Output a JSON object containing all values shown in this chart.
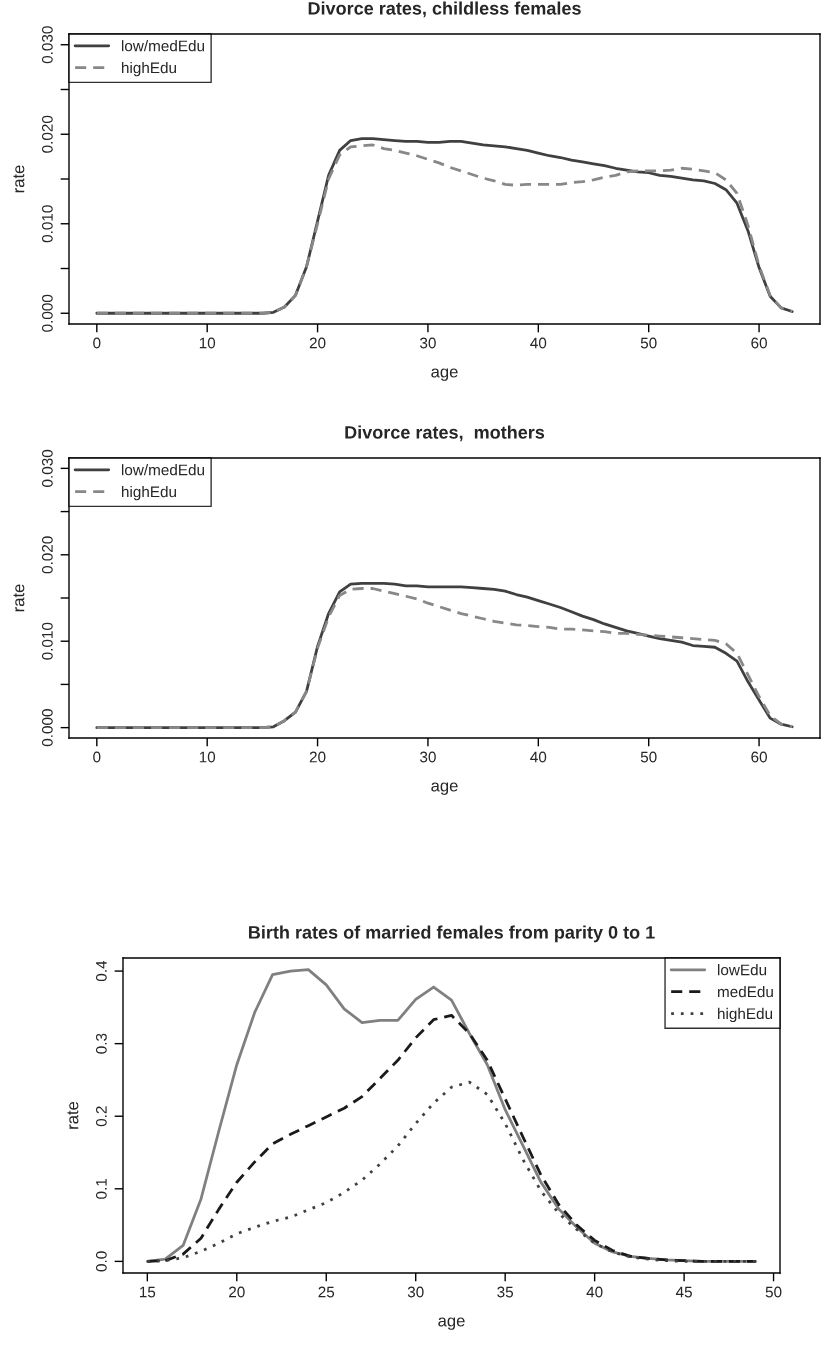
{
  "chart_data": [
    {
      "type": "line",
      "title": "Divorce rates, childless females",
      "xlabel": "age",
      "ylabel": "rate",
      "legend": "top left",
      "x": [
        0,
        1,
        2,
        3,
        4,
        5,
        6,
        7,
        8,
        9,
        10,
        11,
        12,
        13,
        14,
        15,
        16,
        17,
        18,
        19,
        20,
        21,
        22,
        23,
        24,
        25,
        26,
        27,
        28,
        29,
        30,
        31,
        32,
        33,
        34,
        35,
        36,
        37,
        38,
        39,
        40,
        41,
        42,
        43,
        44,
        45,
        46,
        47,
        48,
        49,
        50,
        51,
        52,
        53,
        54,
        55,
        56,
        57,
        58,
        59,
        60,
        61,
        62,
        63
      ],
      "xlim": [
        -2.52,
        65.52
      ],
      "xticks": [
        0,
        10,
        20,
        30,
        40,
        50,
        60
      ],
      "ylim": [
        -0.0012,
        0.0312
      ],
      "yticks": [
        {
          "value": 0,
          "label": "0.000"
        },
        {
          "value": 0.005,
          "label": null
        },
        {
          "value": 0.01,
          "label": "0.010"
        },
        {
          "value": 0.015,
          "label": null
        },
        {
          "value": 0.02,
          "label": "0.020"
        },
        {
          "value": 0.025,
          "label": null
        },
        {
          "value": 0.03,
          "label": "0.030"
        }
      ],
      "series": [
        {
          "name": "low/medEdu",
          "color": "#404040",
          "line_style": "solid",
          "values": [
            0,
            0,
            0,
            0,
            0,
            0,
            0,
            0,
            0,
            0,
            0,
            0,
            0,
            0,
            0,
            0,
            0.0001,
            0.0007,
            0.002,
            0.0052,
            0.0103,
            0.0154,
            0.0182,
            0.0193,
            0.0195,
            0.0195,
            0.0194,
            0.0193,
            0.0192,
            0.0192,
            0.0191,
            0.0191,
            0.0192,
            0.0192,
            0.019,
            0.0188,
            0.0187,
            0.0186,
            0.0184,
            0.0182,
            0.0179,
            0.0176,
            0.0174,
            0.0171,
            0.0169,
            0.0167,
            0.0165,
            0.0162,
            0.016,
            0.0158,
            0.0157,
            0.0154,
            0.0153,
            0.0151,
            0.0149,
            0.0148,
            0.0145,
            0.0138,
            0.0123,
            0.0092,
            0.0051,
            0.0019,
            0.0006,
            0.0002
          ]
        },
        {
          "name": "highEdu",
          "color": "#888888",
          "line_style": "dashed",
          "values": [
            0,
            0,
            0,
            0,
            0,
            0,
            0,
            0,
            0,
            0,
            0,
            0,
            0,
            0,
            0,
            0,
            0.0001,
            0.0007,
            0.002,
            0.0052,
            0.01,
            0.015,
            0.0177,
            0.0186,
            0.0187,
            0.0188,
            0.0184,
            0.0182,
            0.0179,
            0.0176,
            0.0172,
            0.0168,
            0.0163,
            0.0159,
            0.0155,
            0.0151,
            0.0148,
            0.0144,
            0.0143,
            0.0144,
            0.0144,
            0.0144,
            0.0144,
            0.0146,
            0.0147,
            0.0149,
            0.0152,
            0.0154,
            0.0158,
            0.0159,
            0.0159,
            0.0159,
            0.016,
            0.0162,
            0.0161,
            0.0159,
            0.0157,
            0.0149,
            0.0134,
            0.0098,
            0.0053,
            0.002,
            0.0006,
            0.0002
          ]
        }
      ]
    },
    {
      "type": "line",
      "title": "Divorce rates,  mothers",
      "xlabel": "age",
      "ylabel": "rate",
      "legend": "top left",
      "x": [
        0,
        1,
        2,
        3,
        4,
        5,
        6,
        7,
        8,
        9,
        10,
        11,
        12,
        13,
        14,
        15,
        16,
        17,
        18,
        19,
        20,
        21,
        22,
        23,
        24,
        25,
        26,
        27,
        28,
        29,
        30,
        31,
        32,
        33,
        34,
        35,
        36,
        37,
        38,
        39,
        40,
        41,
        42,
        43,
        44,
        45,
        46,
        47,
        48,
        49,
        50,
        51,
        52,
        53,
        54,
        55,
        56,
        57,
        58,
        59,
        60,
        61,
        62,
        63
      ],
      "xlim": [
        -2.52,
        65.52
      ],
      "xticks": [
        0,
        10,
        20,
        30,
        40,
        50,
        60
      ],
      "ylim": [
        -0.0012,
        0.0312
      ],
      "yticks": [
        {
          "value": 0,
          "label": "0.000"
        },
        {
          "value": 0.005,
          "label": null
        },
        {
          "value": 0.01,
          "label": "0.010"
        },
        {
          "value": 0.015,
          "label": null
        },
        {
          "value": 0.02,
          "label": "0.020"
        },
        {
          "value": 0.025,
          "label": null
        },
        {
          "value": 0.03,
          "label": "0.030"
        }
      ],
      "series": [
        {
          "name": "low/medEdu",
          "color": "#404040",
          "line_style": "solid",
          "values": [
            0,
            0,
            0,
            0,
            0,
            0,
            0,
            0,
            0,
            0,
            0,
            0,
            0,
            0,
            0,
            0,
            0.0001,
            0.0008,
            0.0018,
            0.0042,
            0.0094,
            0.0132,
            0.0157,
            0.0166,
            0.0167,
            0.0167,
            0.0167,
            0.0166,
            0.0164,
            0.0164,
            0.0163,
            0.0163,
            0.0163,
            0.0163,
            0.0162,
            0.0161,
            0.016,
            0.0158,
            0.0154,
            0.0151,
            0.0147,
            0.0143,
            0.0139,
            0.0134,
            0.0129,
            0.0125,
            0.012,
            0.0116,
            0.0112,
            0.0109,
            0.0106,
            0.0103,
            0.0101,
            0.0099,
            0.0095,
            0.0094,
            0.0093,
            0.0086,
            0.0077,
            0.0053,
            0.0032,
            0.0011,
            0.0004,
            0.0001
          ]
        },
        {
          "name": "highEdu",
          "color": "#888888",
          "line_style": "dashed",
          "values": [
            0,
            0,
            0,
            0,
            0,
            0,
            0,
            0,
            0,
            0,
            0,
            0,
            0,
            0,
            0,
            0,
            0.0001,
            0.0008,
            0.0018,
            0.0042,
            0.0092,
            0.0128,
            0.0153,
            0.016,
            0.0161,
            0.0161,
            0.0158,
            0.0155,
            0.0152,
            0.0149,
            0.0144,
            0.014,
            0.0136,
            0.0132,
            0.0129,
            0.0126,
            0.0123,
            0.0121,
            0.0119,
            0.0118,
            0.0117,
            0.0116,
            0.0114,
            0.0114,
            0.0113,
            0.0112,
            0.0111,
            0.0109,
            0.0109,
            0.0108,
            0.0107,
            0.0106,
            0.0105,
            0.0104,
            0.0103,
            0.0102,
            0.0101,
            0.0097,
            0.0086,
            0.0061,
            0.0036,
            0.0014,
            0.0004,
            0.0001
          ]
        }
      ]
    },
    {
      "type": "line",
      "title": "Birth rates of married females from parity 0 to 1",
      "xlabel": "age",
      "ylabel": "rate",
      "legend": "top right",
      "x": [
        15,
        16,
        17,
        18,
        19,
        20,
        21,
        22,
        23,
        24,
        25,
        26,
        27,
        28,
        29,
        30,
        31,
        32,
        33,
        34,
        35,
        36,
        37,
        38,
        39,
        40,
        41,
        42,
        43,
        44,
        45,
        46,
        47,
        48,
        49
      ],
      "xlim": [
        13.64,
        50.36
      ],
      "xticks": [
        15,
        20,
        25,
        30,
        35,
        40,
        45,
        50
      ],
      "ylim": [
        -0.016,
        0.418
      ],
      "yticks": [
        {
          "value": 0,
          "label": "0.0"
        },
        {
          "value": 0.1,
          "label": "0.1"
        },
        {
          "value": 0.2,
          "label": "0.2"
        },
        {
          "value": 0.3,
          "label": "0.3"
        },
        {
          "value": 0.4,
          "label": "0.4"
        }
      ],
      "series": [
        {
          "name": "lowEdu",
          "color": "#808080",
          "line_style": "solid",
          "values": [
            0,
            0.003,
            0.022,
            0.086,
            0.18,
            0.271,
            0.343,
            0.395,
            0.4,
            0.402,
            0.381,
            0.348,
            0.329,
            0.332,
            0.332,
            0.361,
            0.378,
            0.36,
            0.314,
            0.271,
            0.209,
            0.159,
            0.109,
            0.072,
            0.047,
            0.025,
            0.013,
            0.007,
            0.004,
            0.002,
            0.001,
            0,
            0,
            0,
            0
          ]
        },
        {
          "name": "medEdu",
          "color": "#1a1a1a",
          "line_style": "dashed",
          "values": [
            0,
            0.001,
            0.01,
            0.032,
            0.072,
            0.109,
            0.137,
            0.162,
            0.175,
            0.187,
            0.199,
            0.211,
            0.227,
            0.252,
            0.277,
            0.308,
            0.333,
            0.339,
            0.314,
            0.277,
            0.224,
            0.171,
            0.119,
            0.078,
            0.05,
            0.029,
            0.015,
            0.007,
            0.004,
            0.002,
            0.001,
            0,
            0,
            0,
            0
          ]
        },
        {
          "name": "highEdu",
          "color": "#404040",
          "line_style": "dotted",
          "values": [
            0,
            0.001,
            0.005,
            0.014,
            0.025,
            0.038,
            0.047,
            0.055,
            0.061,
            0.071,
            0.081,
            0.095,
            0.112,
            0.134,
            0.159,
            0.19,
            0.218,
            0.24,
            0.247,
            0.23,
            0.19,
            0.14,
            0.097,
            0.066,
            0.044,
            0.025,
            0.013,
            0.006,
            0.003,
            0.001,
            0,
            0,
            0,
            0,
            0
          ]
        }
      ]
    }
  ]
}
